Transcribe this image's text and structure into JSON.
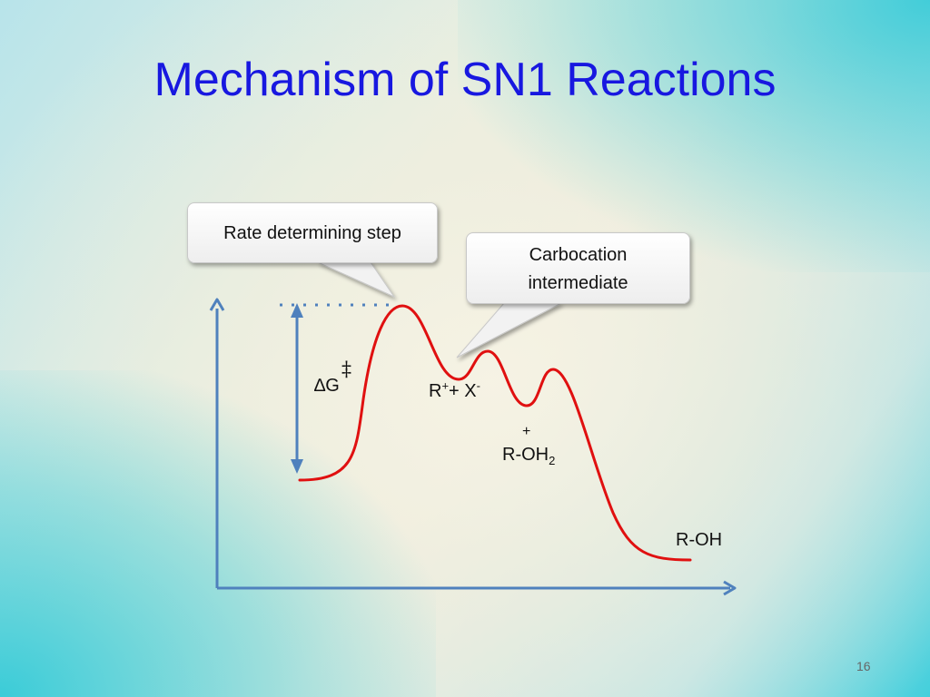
{
  "slide": {
    "title": "Mechanism of SN1 Reactions",
    "page_number": "16"
  },
  "callouts": {
    "rate_step": "Rate determining step",
    "carbocation_line1": "Carbocation",
    "carbocation_line2": "intermediate"
  },
  "labels": {
    "delta_g": "∆G",
    "double_dagger": "‡",
    "carbocation": {
      "r": "R",
      "r_sup": "+",
      "rest": "+ X",
      "x_sup": "-"
    },
    "oxonium": {
      "charge": "+",
      "base": "R-OH",
      "sub": "2"
    },
    "product": "R-OH"
  },
  "colors": {
    "title": "#1818e0",
    "curve": "#e01010",
    "axes": "#4f81bd"
  }
}
